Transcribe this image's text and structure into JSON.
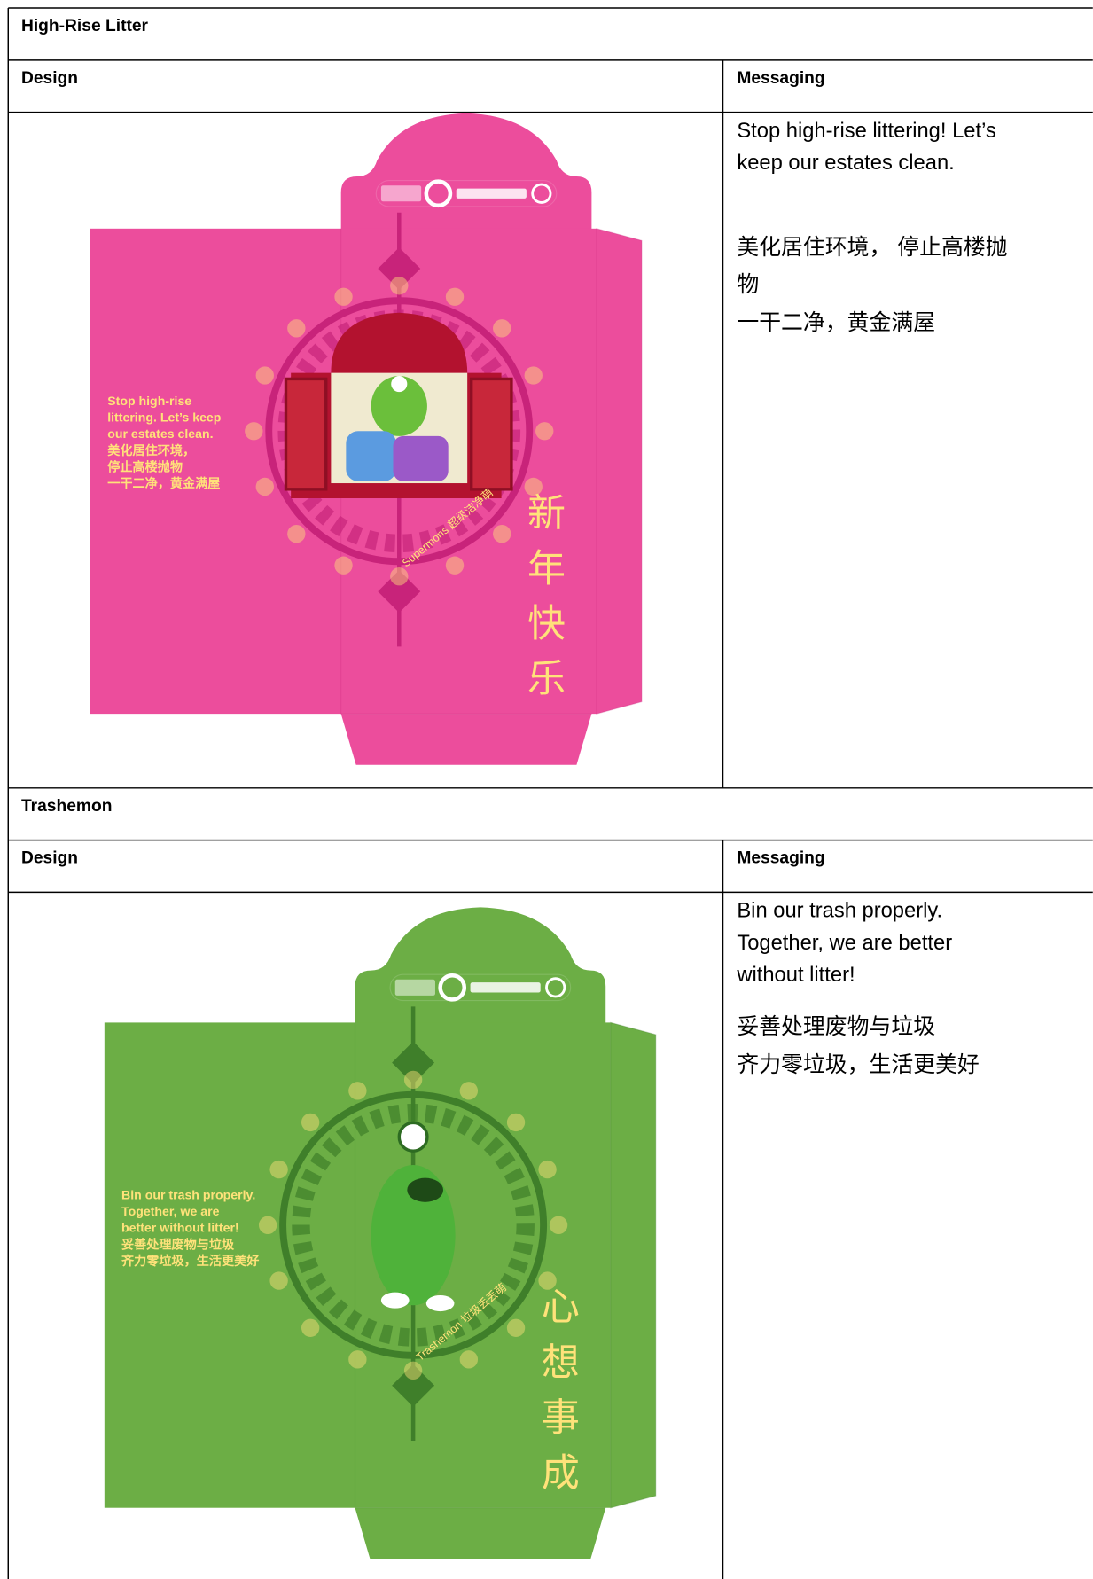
{
  "sections": [
    {
      "title": "High-Rise Litter",
      "design_heading": "Design",
      "messaging_heading": "Messaging",
      "messaging": [
        [
          "Stop high-rise littering! Let’s",
          "keep our estates clean."
        ],
        [
          "美化居住环境， 停止高楼抛",
          "物"
        ],
        [
          "一干二净，黄金满屋"
        ]
      ],
      "envelope": {
        "color": "#ec4d9c",
        "accent": "#c8237a",
        "text_color": "#ffe27a",
        "side_text": [
          "Stop high-rise",
          "littering. Let’s keep",
          "our estates clean.",
          "美化居住环境，",
          "停止高楼抛物",
          "一干二净，黄金满屋"
        ],
        "greeting": [
          "新",
          "年",
          "快",
          "乐"
        ],
        "caption": "Supermons 超级洁净萌"
      }
    },
    {
      "title": "Trashemon",
      "design_heading": "Design",
      "messaging_heading": "Messaging",
      "messaging": [
        [
          "Bin our trash properly.",
          "Together, we are better",
          "without litter!"
        ],
        [
          "妥善处理废物与垃圾"
        ],
        [
          "齐力零垃圾，生活更美好"
        ]
      ],
      "envelope": {
        "color": "#6cae45",
        "accent": "#3f7f2a",
        "text_color": "#ffe27a",
        "side_text": [
          "Bin our trash properly.",
          "Together, we are",
          "better without litter!",
          "妥善处理废物与垃圾",
          "齐力零垃圾，生活更美好"
        ],
        "greeting": [
          "心",
          "想",
          "事",
          "成"
        ],
        "caption": "Trashemon 垃圾丢丢萌"
      }
    }
  ]
}
